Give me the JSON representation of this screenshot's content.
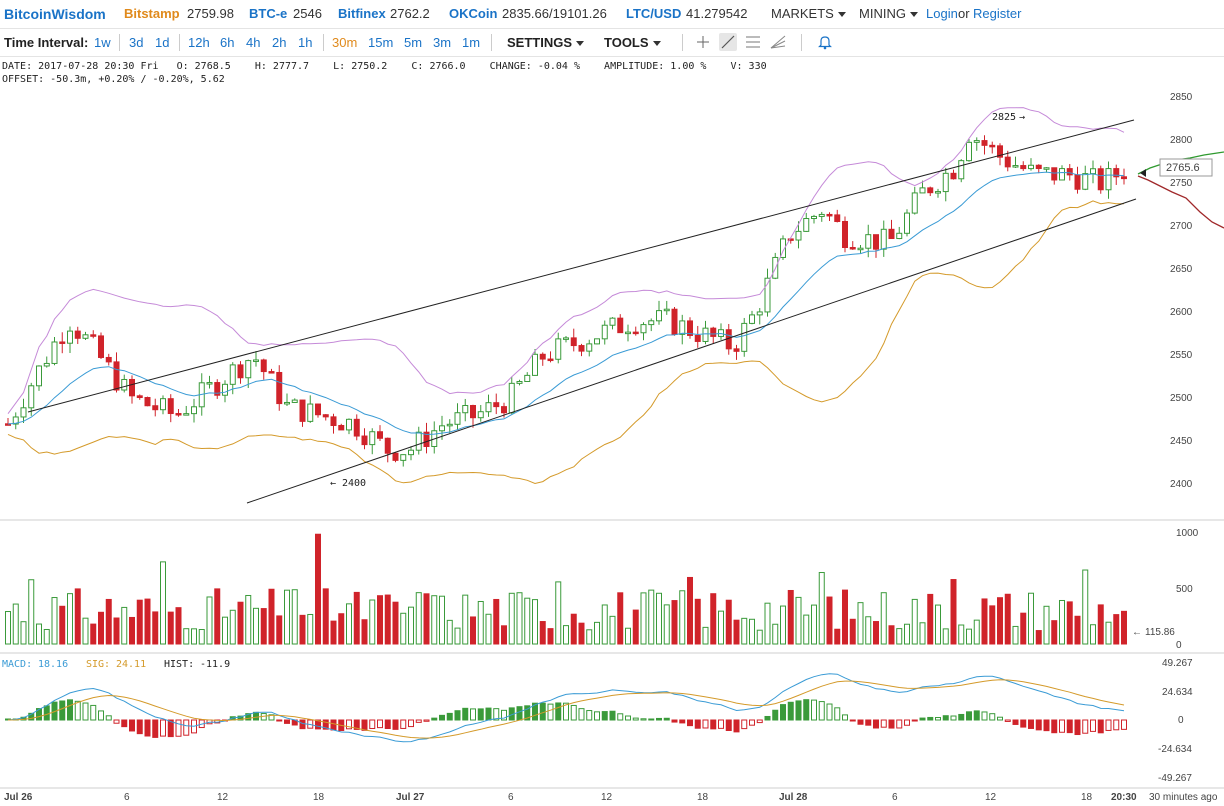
{
  "header": {
    "logo": "BitcoinWisdom",
    "exchanges": [
      {
        "name": "Bitstamp",
        "price": "2759.98",
        "highlight": true
      },
      {
        "name": "BTC-e",
        "price": "2546",
        "highlight": false
      },
      {
        "name": "Bitfinex",
        "price": "2762.2",
        "highlight": false
      },
      {
        "name": "OKCoin",
        "price": "2835.66/19101.26",
        "highlight": false
      },
      {
        "name": "LTC/USD",
        "price": "41.279542",
        "highlight": false
      }
    ],
    "markets_label": "MARKETS",
    "mining_label": "MINING",
    "login_label": "Login",
    "or_label": "or",
    "register_label": "Register"
  },
  "toolbar": {
    "time_interval_label": "Time Interval:",
    "intervals": [
      "1w",
      "3d",
      "1d",
      "12h",
      "6h",
      "4h",
      "2h",
      "1h",
      "30m",
      "15m",
      "5m",
      "3m",
      "1m"
    ],
    "active_interval": "30m",
    "settings_label": "SETTINGS",
    "tools_label": "TOOLS",
    "tools": [
      "crosshair-icon",
      "line-icon",
      "fibonacci-icon",
      "fan-icon",
      "alarm-bell-icon"
    ]
  },
  "info": {
    "line1": "DATE: 2017-07-28 20:30 Fri   O: 2768.5    H: 2777.7    L: 2750.2    C: 2766.0    CHANGE: -0.04 %    AMPLITUDE: 1.00 %    V: 330",
    "line2": "OFFSET: -50.3m, +0.20% / -0.20%, 5.62"
  },
  "price_axis": {
    "ticks": [
      "2850",
      "2800",
      "2750",
      "2700",
      "2650",
      "2600",
      "2550",
      "2500",
      "2450",
      "2400"
    ],
    "current_price": "2765.6",
    "high_marker": "2825",
    "low_marker": "2400"
  },
  "volume_axis": {
    "ticks": [
      "1000",
      "500",
      "0"
    ],
    "current_volume": "115.86"
  },
  "macd": {
    "macd_label": "MACD:",
    "macd_value": "18.16",
    "sig_label": "SIG:",
    "sig_value": "24.11",
    "hist_label": "HIST:",
    "hist_value": "-11.9",
    "ticks": [
      "49.267",
      "24.634",
      "0",
      "-24.634",
      "-49.267"
    ]
  },
  "time_axis": {
    "labels": [
      "Jul 26",
      "6",
      "12",
      "18",
      "Jul 27",
      "6",
      "12",
      "18",
      "Jul 28",
      "6",
      "12",
      "18"
    ],
    "current_time": "20:30",
    "updated": "30 minutes ago"
  },
  "colors": {
    "up": "#3a9a3a",
    "down": "#d0232a",
    "ema": "#3a9bd5",
    "boll_upper": "#c58ad8",
    "boll_lower": "#d49a2a",
    "macd_line": "#3a9bd5",
    "signal_line": "#d49a2a"
  }
}
